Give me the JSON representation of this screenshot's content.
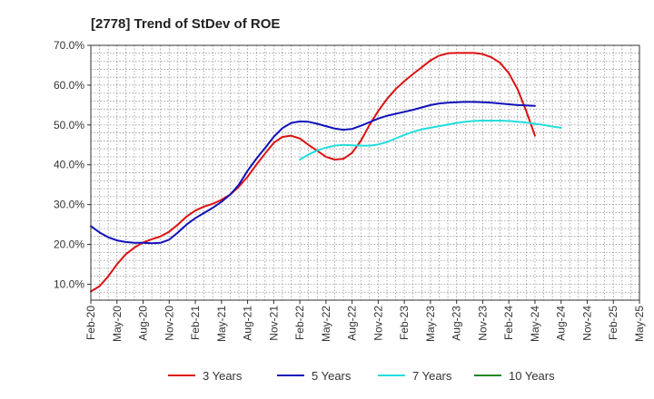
{
  "chart_data": {
    "type": "line",
    "title": "[2778]  Trend of StDev of ROE",
    "xlabel": "",
    "ylabel": "",
    "ylim": [
      6,
      70
    ],
    "yticks": [
      10,
      20,
      30,
      40,
      50,
      60,
      70
    ],
    "ytick_labels": [
      "10.0%",
      "20.0%",
      "30.0%",
      "40.0%",
      "50.0%",
      "60.0%",
      "70.0%"
    ],
    "x_tick_labels": [
      "Feb-20",
      "May-20",
      "Aug-20",
      "Nov-20",
      "Feb-21",
      "May-21",
      "Aug-21",
      "Nov-21",
      "Feb-22",
      "May-22",
      "Aug-22",
      "Nov-22",
      "Feb-23",
      "May-23",
      "Aug-23",
      "Nov-23",
      "Feb-24",
      "May-24",
      "Aug-24",
      "Nov-24",
      "Feb-25",
      "May-25"
    ],
    "grid": true,
    "legend_position": "bottom",
    "series": [
      {
        "name": "3 Years",
        "color": "#dd1111",
        "points": [
          [
            0,
            8.2
          ],
          [
            1,
            9.5
          ],
          [
            2,
            12
          ],
          [
            3,
            15
          ],
          [
            4,
            17.5
          ],
          [
            5,
            19.2
          ],
          [
            6,
            20.5
          ],
          [
            7,
            21.3
          ],
          [
            8,
            22
          ],
          [
            9,
            23.2
          ],
          [
            10,
            25
          ],
          [
            11,
            27
          ],
          [
            12,
            28.5
          ],
          [
            13,
            29.5
          ],
          [
            14,
            30.2
          ],
          [
            15,
            31.2
          ],
          [
            16,
            32.5
          ],
          [
            17,
            34.5
          ],
          [
            18,
            37
          ],
          [
            19,
            40
          ],
          [
            20,
            42.8
          ],
          [
            21,
            45.5
          ],
          [
            22,
            47
          ],
          [
            23,
            47.3
          ],
          [
            24,
            46.6
          ],
          [
            25,
            45
          ],
          [
            26,
            43.5
          ],
          [
            27,
            42
          ],
          [
            28,
            41.3
          ],
          [
            29,
            41.5
          ],
          [
            30,
            43
          ],
          [
            31,
            46
          ],
          [
            32,
            50
          ],
          [
            33,
            53.5
          ],
          [
            34,
            56.5
          ],
          [
            35,
            59
          ],
          [
            36,
            61
          ],
          [
            37,
            62.8
          ],
          [
            38,
            64.5
          ],
          [
            39,
            66.2
          ],
          [
            40,
            67.4
          ],
          [
            41,
            68
          ],
          [
            42,
            68.1
          ],
          [
            43,
            68.1
          ],
          [
            44,
            68.1
          ],
          [
            45,
            67.8
          ],
          [
            46,
            67
          ],
          [
            47,
            65.6
          ],
          [
            48,
            63
          ],
          [
            49,
            59
          ],
          [
            50,
            53.5
          ],
          [
            51,
            47.3
          ]
        ]
      },
      {
        "name": "5 Years",
        "color": "#1111bb",
        "points": [
          [
            0,
            24.6
          ],
          [
            1,
            23
          ],
          [
            2,
            21.8
          ],
          [
            3,
            21
          ],
          [
            4,
            20.6
          ],
          [
            5,
            20.4
          ],
          [
            6,
            20.4
          ],
          [
            7,
            20.3
          ],
          [
            8,
            20.4
          ],
          [
            9,
            21.2
          ],
          [
            10,
            23
          ],
          [
            11,
            25
          ],
          [
            12,
            26.6
          ],
          [
            13,
            27.9
          ],
          [
            14,
            29.2
          ],
          [
            15,
            30.7
          ],
          [
            16,
            32.5
          ],
          [
            17,
            35
          ],
          [
            18,
            38.5
          ],
          [
            19,
            41.5
          ],
          [
            20,
            44.2
          ],
          [
            21,
            47
          ],
          [
            22,
            49.2
          ],
          [
            23,
            50.5
          ],
          [
            24,
            50.9
          ],
          [
            25,
            50.8
          ],
          [
            26,
            50.3
          ],
          [
            27,
            49.7
          ],
          [
            28,
            49.1
          ],
          [
            29,
            48.8
          ],
          [
            30,
            49
          ],
          [
            31,
            49.8
          ],
          [
            32,
            50.7
          ],
          [
            33,
            51.6
          ],
          [
            34,
            52.3
          ],
          [
            35,
            52.8
          ],
          [
            36,
            53.3
          ],
          [
            37,
            53.8
          ],
          [
            38,
            54.4
          ],
          [
            39,
            55
          ],
          [
            40,
            55.4
          ],
          [
            41,
            55.6
          ],
          [
            42,
            55.7
          ],
          [
            43,
            55.8
          ],
          [
            44,
            55.8
          ],
          [
            45,
            55.7
          ],
          [
            46,
            55.6
          ],
          [
            47,
            55.4
          ],
          [
            48,
            55.2
          ],
          [
            49,
            55
          ],
          [
            50,
            54.9
          ],
          [
            51,
            54.8
          ]
        ]
      },
      {
        "name": "7 Years",
        "color": "#22dddd",
        "points": [
          [
            24,
            41.3
          ],
          [
            25,
            42.6
          ],
          [
            26,
            43.6
          ],
          [
            27,
            44.3
          ],
          [
            28,
            44.8
          ],
          [
            29,
            45
          ],
          [
            30,
            44.9
          ],
          [
            31,
            44.8
          ],
          [
            32,
            44.8
          ],
          [
            33,
            45.1
          ],
          [
            34,
            45.7
          ],
          [
            35,
            46.6
          ],
          [
            36,
            47.5
          ],
          [
            37,
            48.3
          ],
          [
            38,
            48.9
          ],
          [
            39,
            49.3
          ],
          [
            40,
            49.7
          ],
          [
            41,
            50.1
          ],
          [
            42,
            50.5
          ],
          [
            43,
            50.8
          ],
          [
            44,
            51
          ],
          [
            45,
            51.1
          ],
          [
            46,
            51.1
          ],
          [
            47,
            51.1
          ],
          [
            48,
            51
          ],
          [
            49,
            50.8
          ],
          [
            50,
            50.6
          ],
          [
            51,
            50.3
          ],
          [
            52,
            50
          ],
          [
            53,
            49.6
          ],
          [
            54,
            49.3
          ]
        ]
      },
      {
        "name": "10 Years",
        "color": "#228822",
        "points": []
      }
    ]
  }
}
